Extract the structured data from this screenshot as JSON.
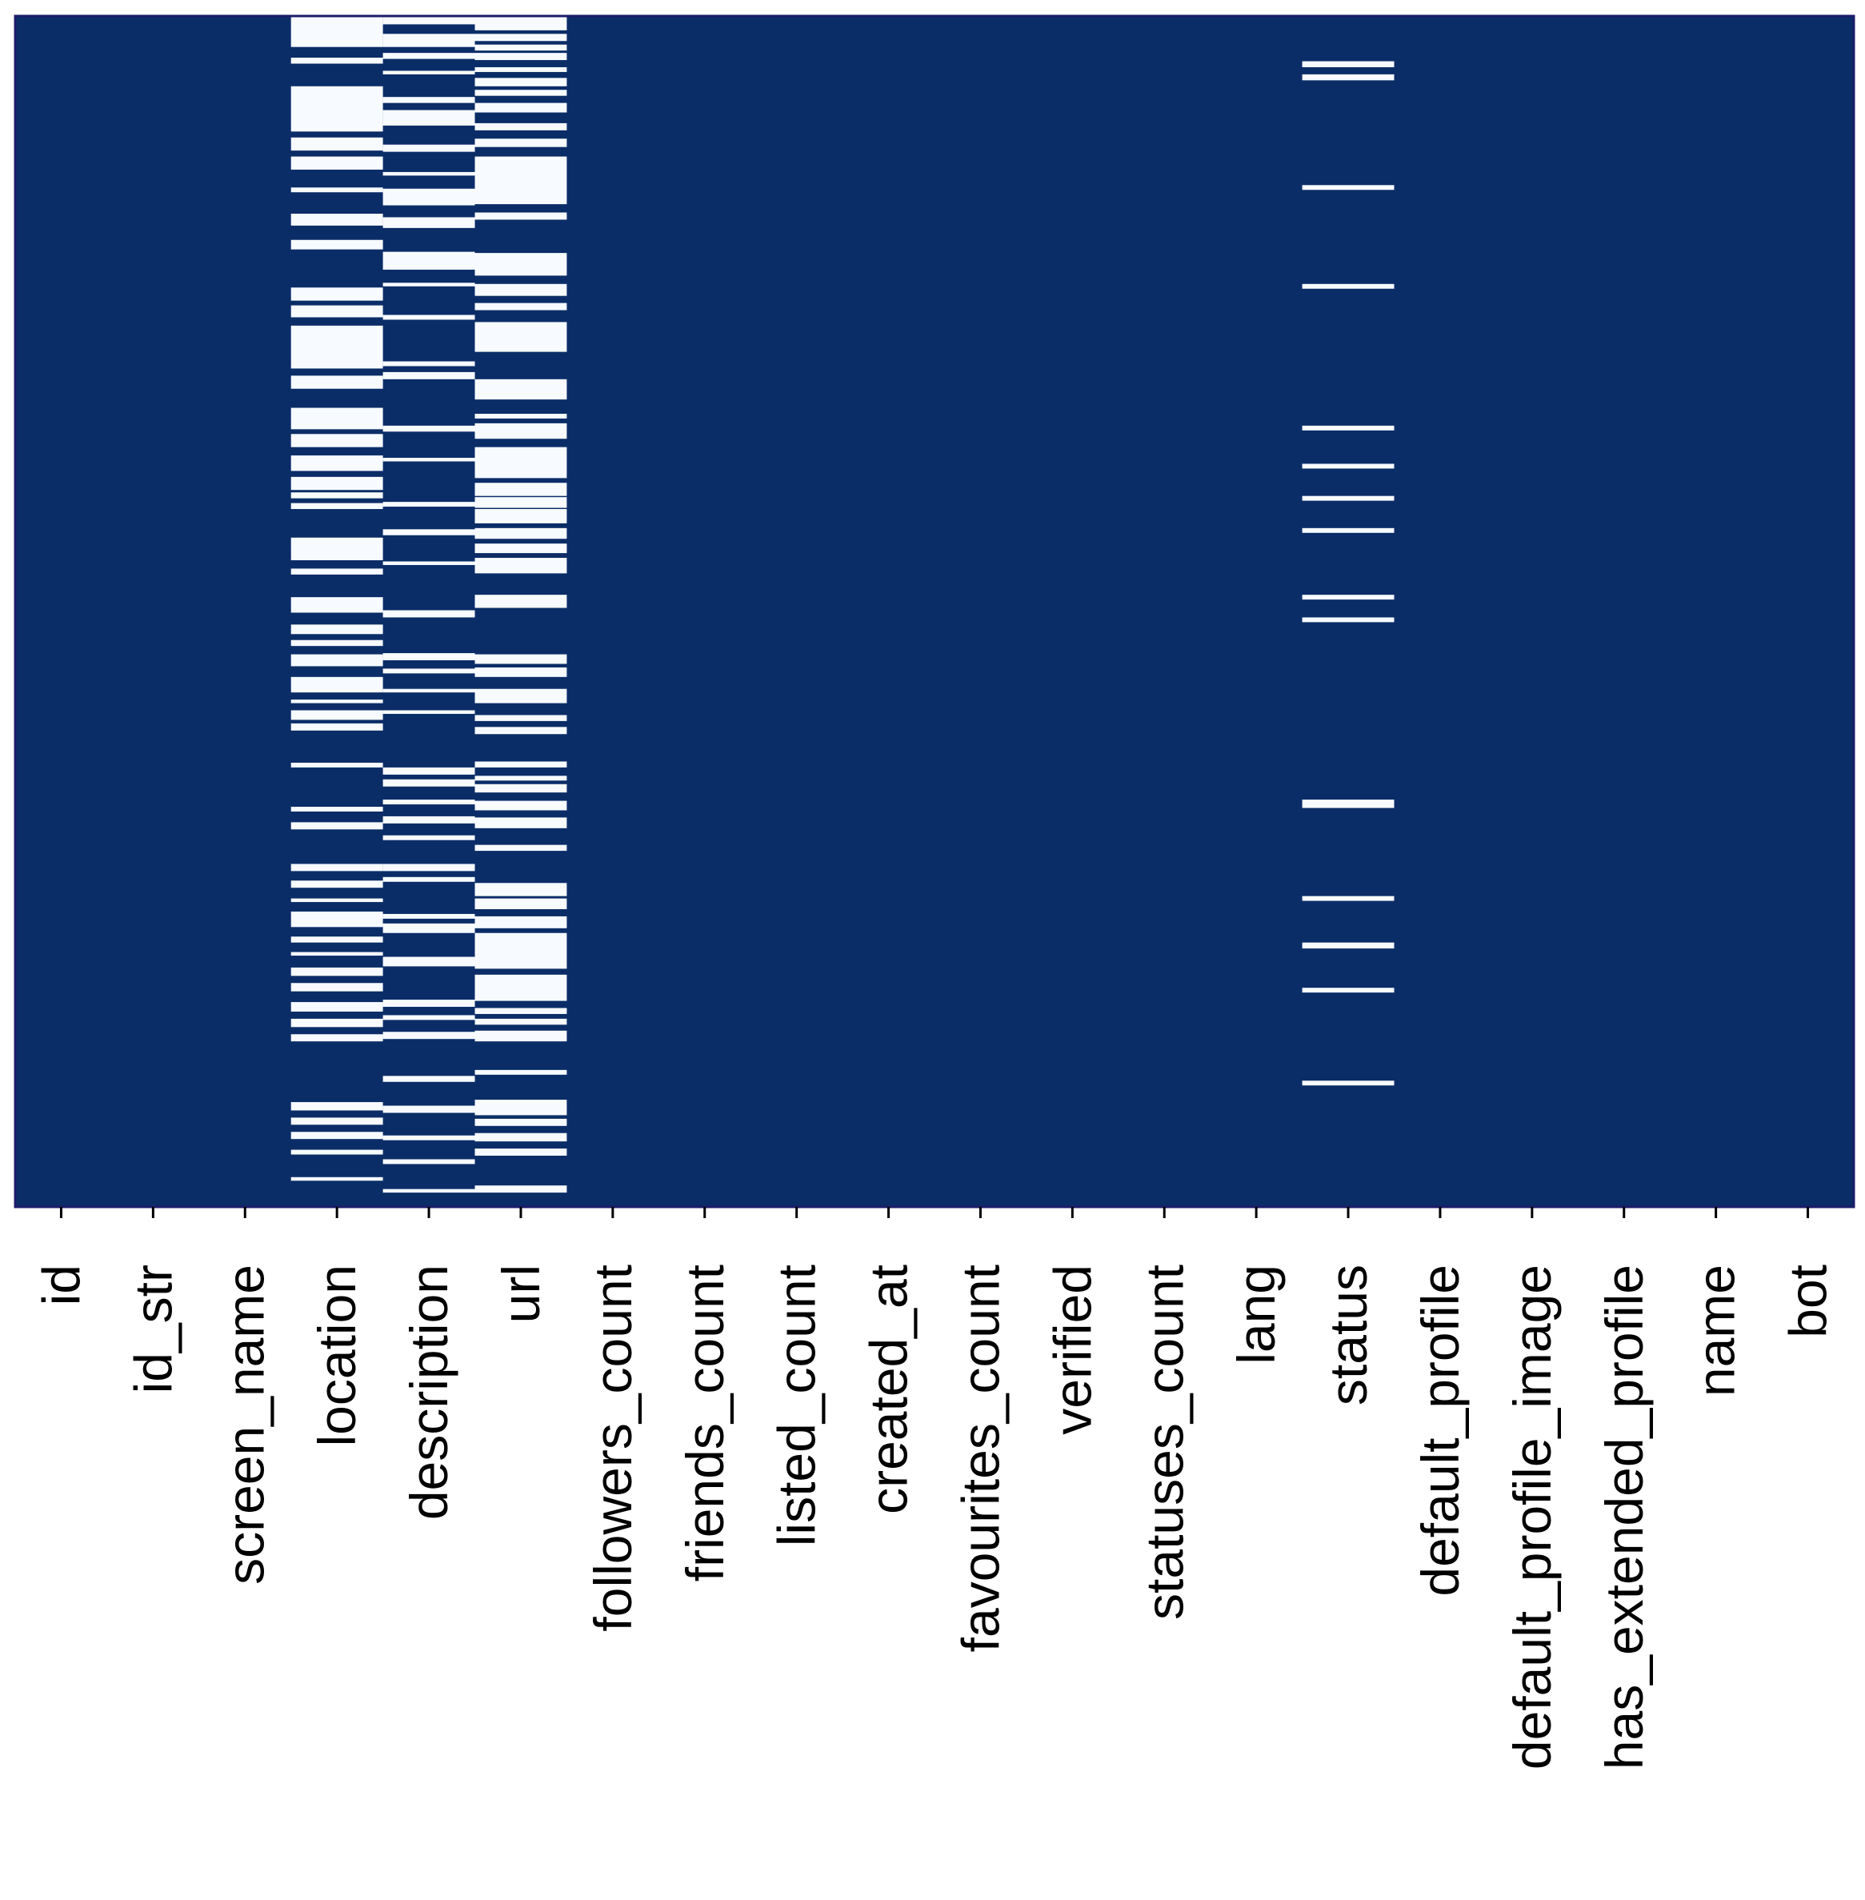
{
  "chart_data": {
    "type": "heatmap",
    "title": "",
    "xlabel": "",
    "ylabel": "",
    "description_values": "1 = missing value (light cell), 0 = present (dark cell); rows are records, listed top to bottom",
    "colors": {
      "present": "#0b2d67",
      "missing": "#f7fbff",
      "frame": "#1c1c6b"
    },
    "n_rows": 1000,
    "columns": [
      "id",
      "id_str",
      "screen_name",
      "location",
      "description",
      "url",
      "followers_count",
      "friends_count",
      "listed_count",
      "created_at",
      "favourites_count",
      "verified",
      "statuses_count",
      "lang",
      "status",
      "default_profile",
      "default_profile_image",
      "has_extended_profile",
      "name",
      "bot"
    ],
    "missing_row_ranges": {
      "location": [
        [
          0,
          26
        ],
        [
          35,
          40
        ],
        [
          59,
          97
        ],
        [
          102,
          113
        ],
        [
          118,
          129
        ],
        [
          144,
          148
        ],
        [
          166,
          176
        ],
        [
          188,
          196
        ],
        [
          228,
          239
        ],
        [
          243,
          253
        ],
        [
          260,
          296
        ],
        [
          302,
          313
        ],
        [
          329,
          347
        ],
        [
          351,
          362
        ],
        [
          369,
          382
        ],
        [
          387,
          398
        ],
        [
          400,
          405
        ],
        [
          409,
          414
        ],
        [
          438,
          457
        ],
        [
          464,
          469
        ],
        [
          488,
          501
        ],
        [
          511,
          519
        ],
        [
          524,
          529
        ],
        [
          536,
          546
        ],
        [
          555,
          568
        ],
        [
          574,
          577
        ],
        [
          583,
          591
        ],
        [
          594,
          600
        ],
        [
          627,
          631
        ],
        [
          664,
          668
        ],
        [
          677,
          683
        ],
        [
          712,
          718
        ],
        [
          726,
          732
        ],
        [
          741,
          744
        ],
        [
          752,
          765
        ],
        [
          773,
          778
        ],
        [
          786,
          789
        ],
        [
          799,
          806
        ],
        [
          812,
          819
        ],
        [
          828,
          836
        ],
        [
          842,
          849
        ],
        [
          855,
          861
        ],
        [
          912,
          919
        ],
        [
          925,
          931
        ],
        [
          937,
          943
        ],
        [
          952,
          956
        ],
        [
          975,
          978
        ]
      ],
      "description": [
        [
          0,
          7
        ],
        [
          15,
          26
        ],
        [
          31,
          36
        ],
        [
          46,
          49
        ],
        [
          68,
          73
        ],
        [
          79,
          92
        ],
        [
          108,
          114
        ],
        [
          131,
          134
        ],
        [
          145,
          159
        ],
        [
          169,
          178
        ],
        [
          198,
          213
        ],
        [
          224,
          227
        ],
        [
          251,
          255
        ],
        [
          290,
          294
        ],
        [
          299,
          305
        ],
        [
          344,
          349
        ],
        [
          371,
          374
        ],
        [
          408,
          412
        ],
        [
          431,
          436
        ],
        [
          458,
          461
        ],
        [
          499,
          505
        ],
        [
          535,
          541
        ],
        [
          548,
          552
        ],
        [
          565,
          568
        ],
        [
          583,
          586
        ],
        [
          631,
          637
        ],
        [
          641,
          647
        ],
        [
          658,
          662
        ],
        [
          672,
          678
        ],
        [
          688,
          692
        ],
        [
          712,
          718
        ],
        [
          723,
          727
        ],
        [
          754,
          758
        ],
        [
          762,
          770
        ],
        [
          790,
          798
        ],
        [
          826,
          832
        ],
        [
          839,
          843
        ],
        [
          853,
          859
        ],
        [
          890,
          895
        ],
        [
          915,
          921
        ],
        [
          940,
          944
        ],
        [
          960,
          964
        ],
        [
          985,
          988
        ]
      ],
      "url": [
        [
          0,
          12
        ],
        [
          15,
          21
        ],
        [
          24,
          29
        ],
        [
          31,
          37
        ],
        [
          43,
          47
        ],
        [
          52,
          59
        ],
        [
          62,
          67
        ],
        [
          73,
          81
        ],
        [
          90,
          96
        ],
        [
          103,
          110
        ],
        [
          118,
          158
        ],
        [
          165,
          171
        ],
        [
          199,
          218
        ],
        [
          225,
          235
        ],
        [
          241,
          247
        ],
        [
          257,
          282
        ],
        [
          305,
          322
        ],
        [
          334,
          338
        ],
        [
          342,
          355
        ],
        [
          362,
          388
        ],
        [
          392,
          403
        ],
        [
          404,
          413
        ],
        [
          414,
          426
        ],
        [
          430,
          439
        ],
        [
          443,
          451
        ],
        [
          455,
          468
        ],
        [
          486,
          497
        ],
        [
          536,
          544
        ],
        [
          547,
          555
        ],
        [
          565,
          577
        ],
        [
          587,
          592
        ],
        [
          597,
          603
        ],
        [
          626,
          631
        ],
        [
          638,
          642
        ],
        [
          645,
          652
        ],
        [
          659,
          667
        ],
        [
          673,
          682
        ],
        [
          696,
          701
        ],
        [
          728,
          739
        ],
        [
          741,
          750
        ],
        [
          756,
          766
        ],
        [
          770,
          800
        ],
        [
          805,
          827
        ],
        [
          833,
          838
        ],
        [
          842,
          847
        ],
        [
          852,
          861
        ],
        [
          885,
          889
        ],
        [
          910,
          923
        ],
        [
          926,
          932
        ],
        [
          938,
          945
        ],
        [
          951,
          957
        ],
        [
          982,
          988
        ]
      ],
      "status": [
        [
          38,
          43
        ],
        [
          49,
          54
        ],
        [
          142,
          146
        ],
        [
          225,
          229
        ],
        [
          344,
          348
        ],
        [
          376,
          380
        ],
        [
          403,
          407
        ],
        [
          430,
          434
        ],
        [
          486,
          490
        ],
        [
          505,
          509
        ],
        [
          658,
          665
        ],
        [
          739,
          743
        ],
        [
          778,
          783
        ],
        [
          816,
          820
        ],
        [
          894,
          898
        ]
      ]
    }
  }
}
